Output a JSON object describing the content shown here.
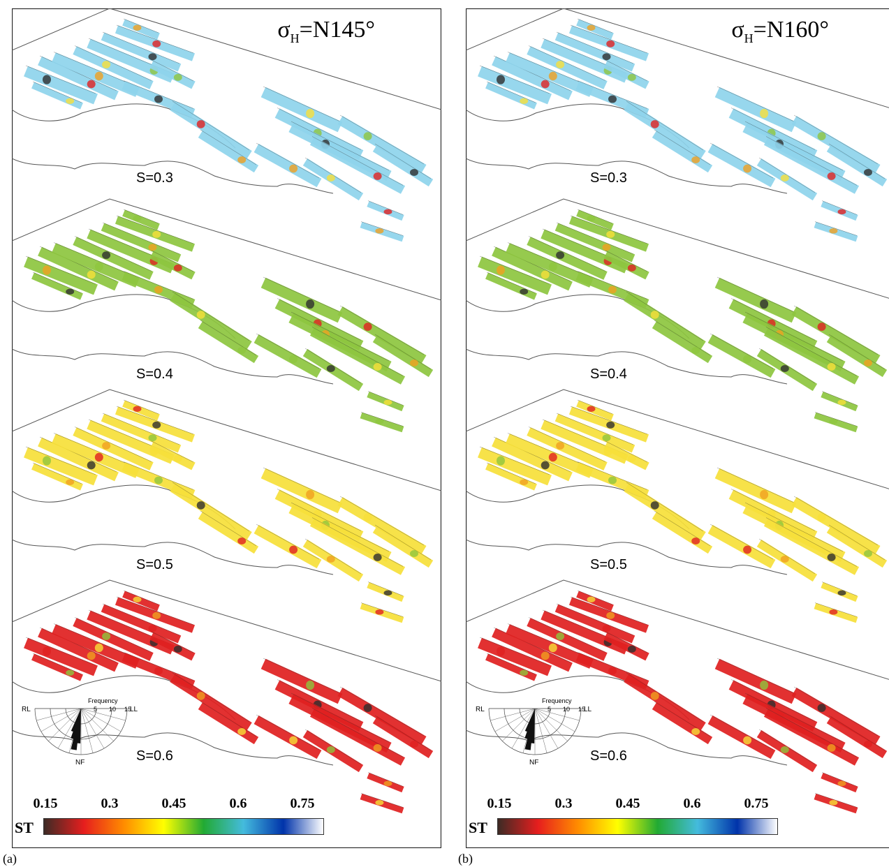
{
  "panels": [
    {
      "id": "a",
      "label": "(a)",
      "stress_title_prefix": "σ",
      "stress_title_sub": "H",
      "stress_title_value": "=N145°",
      "rows": [
        {
          "label": "S=0.3",
          "tone": "low"
        },
        {
          "label": "S=0.4",
          "tone": "mid-low"
        },
        {
          "label": "S=0.5",
          "tone": "mid-high"
        },
        {
          "label": "S=0.6",
          "tone": "high"
        }
      ]
    },
    {
      "id": "b",
      "label": "(b)",
      "stress_title_prefix": "σ",
      "stress_title_sub": "H",
      "stress_title_value": "=N160°",
      "rows": [
        {
          "label": "S=0.3",
          "tone": "low"
        },
        {
          "label": "S=0.4",
          "tone": "mid-low"
        },
        {
          "label": "S=0.5",
          "tone": "mid-high"
        },
        {
          "label": "S=0.6",
          "tone": "high"
        }
      ]
    }
  ],
  "colorbar": {
    "name": "ST",
    "ticks": [
      "0.15",
      "0.3",
      "0.45",
      "0.6",
      "0.75"
    ],
    "stops": [
      "#3d2b25",
      "#e61e1e",
      "#ff8c00",
      "#ffff00",
      "#22aa33",
      "#44bbdd",
      "#0033aa",
      "#ffffff"
    ]
  },
  "rose_diagram": {
    "frequency_label": "Frequency",
    "rings": [
      "5",
      "10",
      "15"
    ],
    "left_label": "RL",
    "right_label": "LL",
    "bottom_label": "NF"
  },
  "tone_colors": {
    "low": "#8fd4ec",
    "mid-low": "#8ec63f",
    "mid-high": "#f7e03a",
    "high": "#e02020"
  }
}
